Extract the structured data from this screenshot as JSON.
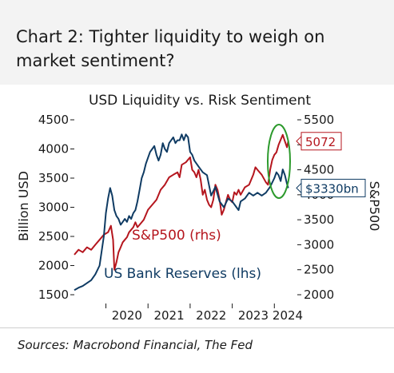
{
  "header": {
    "title": "Chart 2: Tighter liquidity to weigh on market sentiment?"
  },
  "footer": {
    "sources": "Sources: Macrobond Financial, The Fed"
  },
  "colors": {
    "spx": "#b5161e",
    "reserves": "#0f3b63",
    "ellipse": "#2d9a2d",
    "header_bg": "#f3f3f3"
  },
  "chart_data": {
    "type": "line",
    "title": "USD Liquidity vs. Risk Sentiment",
    "ylabel_left": "Billion USD",
    "ylabel_right": "S&P500",
    "ylim_left": [
      1500,
      4500
    ],
    "ylim_right": [
      2000,
      5500
    ],
    "y_left_ticks": [
      1500,
      2000,
      2500,
      3000,
      3500,
      4000,
      4500
    ],
    "y_right_ticks": [
      2000,
      2500,
      3000,
      3500,
      4000,
      4500,
      5000,
      5500
    ],
    "x_ticks": [
      "2020",
      "2021",
      "2022",
      "2023",
      "2024"
    ],
    "xlim": [
      2019.25,
      2024.45
    ],
    "series": [
      {
        "name": "S&P500 (rhs)",
        "axis": "right",
        "color": "#b5161e",
        "x": [
          2019.25,
          2019.35,
          2019.45,
          2019.55,
          2019.65,
          2019.75,
          2019.85,
          2019.95,
          2020.05,
          2020.12,
          2020.17,
          2020.2,
          2020.25,
          2020.3,
          2020.35,
          2020.4,
          2020.45,
          2020.5,
          2020.55,
          2020.6,
          2020.65,
          2020.7,
          2020.75,
          2020.8,
          2020.9,
          2021.0,
          2021.1,
          2021.2,
          2021.3,
          2021.4,
          2021.5,
          2021.6,
          2021.7,
          2021.75,
          2021.8,
          2021.9,
          2022.0,
          2022.05,
          2022.1,
          2022.15,
          2022.2,
          2022.25,
          2022.3,
          2022.35,
          2022.4,
          2022.45,
          2022.5,
          2022.55,
          2022.6,
          2022.65,
          2022.7,
          2022.75,
          2022.8,
          2022.85,
          2022.9,
          2022.95,
          2023.0,
          2023.05,
          2023.1,
          2023.15,
          2023.2,
          2023.3,
          2023.4,
          2023.5,
          2023.55,
          2023.6,
          2023.7,
          2023.8,
          2023.85,
          2023.9,
          2023.95,
          2024.0,
          2024.05,
          2024.1,
          2024.15,
          2024.2,
          2024.25,
          2024.3,
          2024.33
        ],
        "values": [
          2800,
          2900,
          2850,
          2950,
          2900,
          3000,
          3100,
          3200,
          3250,
          3380,
          3100,
          2500,
          2650,
          2850,
          2950,
          3050,
          3100,
          3150,
          3250,
          3300,
          3350,
          3450,
          3350,
          3400,
          3500,
          3700,
          3800,
          3900,
          4100,
          4200,
          4350,
          4400,
          4450,
          4350,
          4600,
          4650,
          4750,
          4500,
          4450,
          4350,
          4500,
          4300,
          4000,
          4100,
          3900,
          3800,
          3750,
          3900,
          4200,
          4100,
          3900,
          3600,
          3700,
          3850,
          4000,
          3900,
          3850,
          4050,
          4000,
          4100,
          4000,
          4150,
          4200,
          4400,
          4550,
          4500,
          4400,
          4250,
          4200,
          4500,
          4700,
          4800,
          4850,
          5000,
          5100,
          5200,
          5070,
          4950,
          5072
        ]
      },
      {
        "name": "US Bank Reserves (lhs)",
        "axis": "left",
        "color": "#0f3b63",
        "x": [
          2019.25,
          2019.35,
          2019.45,
          2019.55,
          2019.65,
          2019.75,
          2019.85,
          2019.95,
          2020.0,
          2020.05,
          2020.1,
          2020.15,
          2020.2,
          2020.25,
          2020.3,
          2020.35,
          2020.4,
          2020.45,
          2020.5,
          2020.55,
          2020.6,
          2020.65,
          2020.7,
          2020.75,
          2020.8,
          2020.85,
          2020.9,
          2020.95,
          2021.0,
          2021.05,
          2021.1,
          2021.15,
          2021.2,
          2021.25,
          2021.3,
          2021.35,
          2021.4,
          2021.45,
          2021.5,
          2021.55,
          2021.6,
          2021.65,
          2021.7,
          2021.75,
          2021.8,
          2021.85,
          2021.9,
          2021.95,
          2022.0,
          2022.05,
          2022.1,
          2022.2,
          2022.3,
          2022.4,
          2022.5,
          2022.6,
          2022.7,
          2022.8,
          2022.9,
          2023.0,
          2023.1,
          2023.15,
          2023.2,
          2023.3,
          2023.4,
          2023.5,
          2023.6,
          2023.7,
          2023.8,
          2023.9,
          2024.0,
          2024.05,
          2024.1,
          2024.15,
          2024.2,
          2024.25,
          2024.3,
          2024.33
        ],
        "values": [
          1580,
          1620,
          1650,
          1700,
          1750,
          1850,
          2000,
          2500,
          2900,
          3150,
          3330,
          3200,
          2950,
          2850,
          2800,
          2700,
          2750,
          2800,
          2750,
          2850,
          2800,
          2900,
          2950,
          3100,
          3300,
          3500,
          3600,
          3750,
          3850,
          3950,
          4000,
          4050,
          3900,
          3800,
          3900,
          4100,
          4000,
          3950,
          4100,
          4150,
          4200,
          4100,
          4150,
          4150,
          4250,
          4150,
          4250,
          4200,
          3950,
          3900,
          3800,
          3700,
          3600,
          3550,
          3200,
          3350,
          3100,
          3000,
          3150,
          3100,
          3000,
          2950,
          3100,
          3150,
          3250,
          3200,
          3250,
          3200,
          3250,
          3350,
          3500,
          3600,
          3550,
          3450,
          3650,
          3550,
          3400,
          3330
        ]
      }
    ],
    "annotations": [
      {
        "text": "S&P500 (rhs)",
        "color": "#b5161e"
      },
      {
        "text": "US Bank Reserves (lhs)",
        "color": "#0f3b63"
      },
      {
        "text": "5072",
        "color": "#b5161e",
        "value": 5072,
        "axis": "right"
      },
      {
        "text": "$3330bn",
        "color": "#0f3b63",
        "value": 3330,
        "axis": "left"
      }
    ]
  }
}
